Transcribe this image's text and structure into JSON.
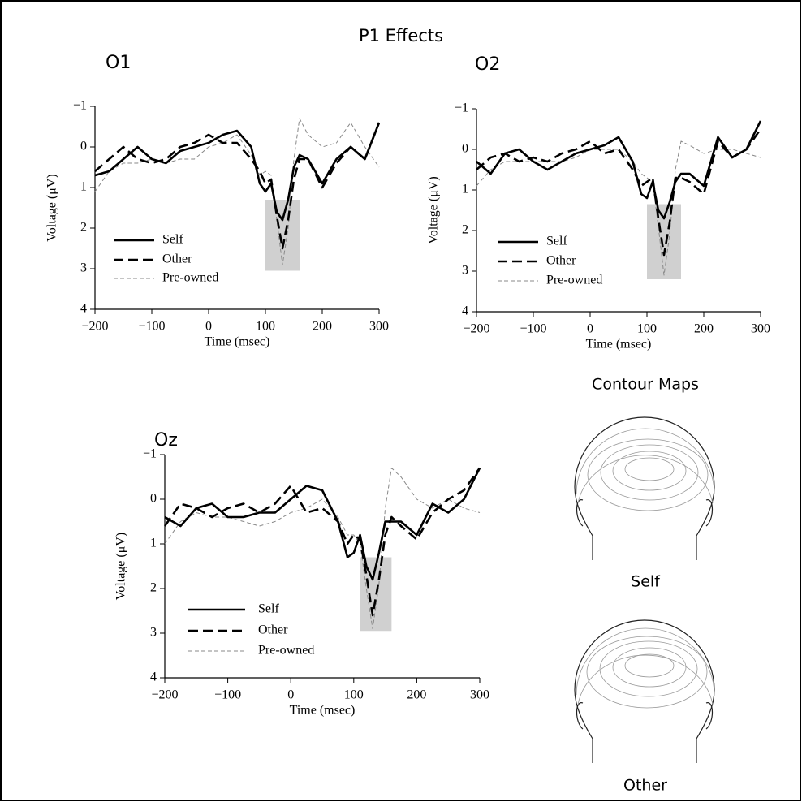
{
  "title": "P1 Effects",
  "contour_maps": {
    "title": "Contour Maps",
    "labels": [
      "Self",
      "Other"
    ]
  },
  "chart_data": [
    {
      "type": "line",
      "title": "O1",
      "y_label": "Voltage (μV)",
      "x_label": "Time (msec)",
      "x": [
        -200,
        -175,
        -150,
        -125,
        -100,
        -75,
        -50,
        -25,
        0,
        25,
        50,
        75,
        90,
        100,
        110,
        120,
        130,
        140,
        150,
        160,
        175,
        200,
        225,
        250,
        275,
        300
      ],
      "xlim": [
        -200,
        300
      ],
      "ylim": [
        -1,
        4
      ],
      "y_inverted": true,
      "xticks": [
        {
          "value": -200,
          "label": "−200"
        },
        {
          "value": -100,
          "label": "−100"
        },
        0,
        100,
        200,
        300
      ],
      "yticks": [
        {
          "value": -1,
          "label": "−1"
        },
        0,
        1,
        2,
        3,
        4
      ],
      "shaded_region": {
        "x": [
          100,
          160
        ],
        "y": [
          1.3,
          3.05
        ]
      },
      "series": [
        {
          "name": "Self",
          "color": "#000000",
          "line_style": "solid",
          "values": [
            0.7,
            0.6,
            0.3,
            0.0,
            0.3,
            0.4,
            0.1,
            0.0,
            -0.1,
            -0.3,
            -0.4,
            0.0,
            0.9,
            1.1,
            0.9,
            1.6,
            1.8,
            1.3,
            0.5,
            0.2,
            0.3,
            0.9,
            0.3,
            0.0,
            0.3,
            -0.6
          ]
        },
        {
          "name": "Other",
          "color": "#000000",
          "line_style": "dashed",
          "values": [
            0.6,
            0.3,
            0.0,
            0.3,
            0.4,
            0.3,
            0.0,
            -0.1,
            -0.3,
            -0.1,
            -0.1,
            0.3,
            0.6,
            0.9,
            0.8,
            1.7,
            2.5,
            1.8,
            0.8,
            0.3,
            0.3,
            1.0,
            0.4,
            0.0,
            0.3,
            -0.6
          ]
        },
        {
          "name": "Pre-owned",
          "color": "#888888",
          "line_style": "thin-dashed",
          "values": [
            1.1,
            0.6,
            0.4,
            0.4,
            0.3,
            0.4,
            0.3,
            0.3,
            0.0,
            -0.1,
            -0.3,
            0.2,
            0.7,
            0.6,
            0.7,
            1.8,
            2.9,
            2.0,
            0.3,
            -0.7,
            -0.3,
            0.0,
            -0.1,
            -0.6,
            0.0,
            0.5
          ]
        }
      ]
    },
    {
      "type": "line",
      "title": "O2",
      "y_label": "Voltage (μV)",
      "x_label": "Time (msec)",
      "x": [
        -200,
        -175,
        -150,
        -125,
        -100,
        -75,
        -50,
        -25,
        0,
        25,
        50,
        75,
        90,
        100,
        110,
        120,
        130,
        140,
        150,
        160,
        175,
        200,
        225,
        250,
        275,
        300
      ],
      "xlim": [
        -200,
        300
      ],
      "ylim": [
        -1,
        4
      ],
      "y_inverted": true,
      "xticks": [
        {
          "value": -200,
          "label": "−200"
        },
        {
          "value": -100,
          "label": "−100"
        },
        0,
        100,
        200,
        300
      ],
      "yticks": [
        {
          "value": -1,
          "label": "−1"
        },
        0,
        1,
        2,
        3,
        4
      ],
      "shaded_region": {
        "x": [
          100,
          160
        ],
        "y": [
          1.35,
          3.2
        ]
      },
      "series": [
        {
          "name": "Self",
          "color": "#000000",
          "line_style": "solid",
          "values": [
            0.3,
            0.6,
            0.1,
            0.0,
            0.3,
            0.5,
            0.3,
            0.1,
            0.0,
            -0.1,
            -0.3,
            0.3,
            1.1,
            1.2,
            0.8,
            1.5,
            1.7,
            1.3,
            0.8,
            0.6,
            0.6,
            0.9,
            -0.3,
            0.2,
            0.0,
            -0.7
          ]
        },
        {
          "name": "Other",
          "color": "#000000",
          "line_style": "dashed",
          "values": [
            0.5,
            0.2,
            0.1,
            0.3,
            0.2,
            0.3,
            0.1,
            0.0,
            -0.2,
            0.1,
            0.0,
            0.5,
            0.9,
            0.8,
            0.7,
            1.7,
            2.6,
            1.8,
            0.7,
            0.7,
            0.8,
            1.1,
            -0.2,
            0.2,
            0.0,
            -0.5
          ]
        },
        {
          "name": "Pre-owned",
          "color": "#888888",
          "line_style": "thin-dashed",
          "values": [
            0.9,
            0.5,
            0.3,
            0.3,
            0.3,
            0.3,
            0.3,
            0.2,
            0.0,
            0.0,
            0.0,
            0.3,
            0.6,
            0.7,
            0.8,
            1.9,
            3.1,
            2.1,
            0.5,
            -0.2,
            -0.1,
            0.1,
            0.0,
            0.0,
            0.1,
            0.2
          ]
        }
      ]
    },
    {
      "type": "line",
      "title": "Oz",
      "y_label": "Voltage (μV)",
      "x_label": "Time (msec)",
      "x": [
        -200,
        -175,
        -150,
        -125,
        -100,
        -75,
        -50,
        -25,
        0,
        25,
        50,
        75,
        90,
        100,
        110,
        120,
        130,
        140,
        150,
        160,
        175,
        200,
        225,
        250,
        275,
        300
      ],
      "xlim": [
        -200,
        300
      ],
      "ylim": [
        -1,
        4
      ],
      "y_inverted": true,
      "xticks": [
        {
          "value": -200,
          "label": "−200"
        },
        {
          "value": -100,
          "label": "−100"
        },
        0,
        100,
        200,
        300
      ],
      "yticks": [
        {
          "value": -1,
          "label": "−1"
        },
        0,
        1,
        2,
        3,
        4
      ],
      "shaded_region": {
        "x": [
          110,
          160
        ],
        "y": [
          1.3,
          2.95
        ]
      },
      "series": [
        {
          "name": "Self",
          "color": "#000000",
          "line_style": "solid",
          "values": [
            0.4,
            0.6,
            0.2,
            0.1,
            0.4,
            0.4,
            0.3,
            0.3,
            0.0,
            -0.3,
            -0.2,
            0.5,
            1.3,
            1.2,
            0.8,
            1.5,
            1.8,
            1.2,
            0.5,
            0.5,
            0.5,
            0.8,
            0.1,
            0.3,
            0.0,
            -0.7
          ]
        },
        {
          "name": "Other",
          "color": "#000000",
          "line_style": "dashed",
          "values": [
            0.6,
            0.1,
            0.2,
            0.4,
            0.2,
            0.1,
            0.3,
            0.1,
            -0.3,
            0.3,
            0.2,
            0.5,
            1.0,
            0.8,
            0.9,
            1.7,
            2.6,
            1.8,
            0.8,
            0.4,
            0.6,
            0.9,
            0.3,
            0.0,
            -0.2,
            -0.7
          ]
        },
        {
          "name": "Pre-owned",
          "color": "#888888",
          "line_style": "thin-dashed",
          "values": [
            1.0,
            0.5,
            0.3,
            0.4,
            0.4,
            0.5,
            0.6,
            0.5,
            0.3,
            0.2,
            0.0,
            0.4,
            0.8,
            0.8,
            1.0,
            2.0,
            2.9,
            1.9,
            0.2,
            -0.7,
            -0.5,
            0.0,
            0.2,
            0.0,
            0.2,
            0.3
          ]
        }
      ]
    }
  ]
}
